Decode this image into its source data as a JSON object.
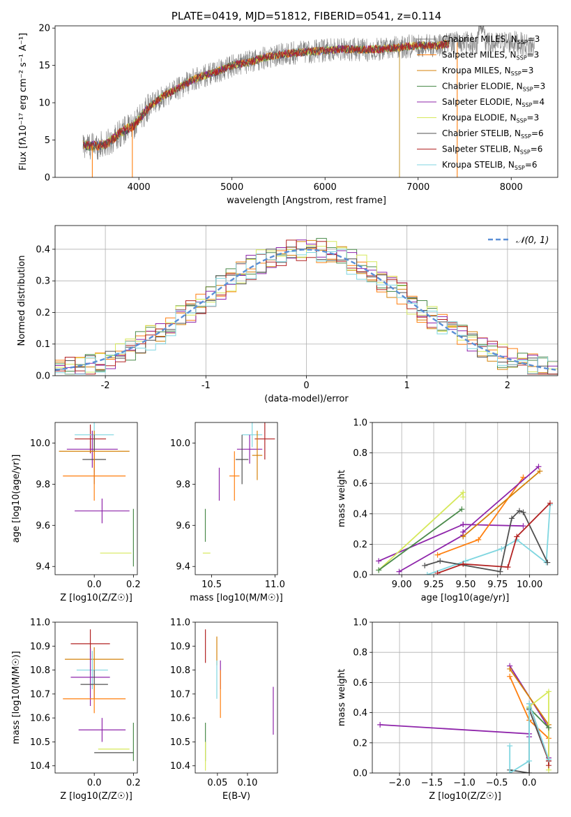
{
  "colors": [
    "#808080",
    "#ff7f0e",
    "#d4820a",
    "#4a8a4a",
    "#8e24aa",
    "#d6e85a",
    "#505050",
    "#b22222",
    "#7fd6e0"
  ],
  "chart_data": [
    {
      "id": "spectrum",
      "type": "line",
      "title": "PLATE=0419, MJD=51812, FIBERID=0541, z=0.114",
      "xlabel": "wavelength [Angstrom, rest frame]",
      "ylabel": "Flux [fλ10⁻¹⁷ erg cm⁻² s⁻¹ A⁻¹]",
      "xlim": [
        3100,
        8500
      ],
      "ylim": [
        0,
        20.3
      ],
      "xticks": [
        4000,
        5000,
        6000,
        7000,
        8000
      ],
      "yticks": [
        0,
        5,
        10,
        15,
        20
      ],
      "legend_position": "right",
      "series_names": [
        "Chabrier MILES, N_SSP=3",
        "Salpeter MILES, N_SSP=3",
        "Kroupa MILES, N_SSP=3",
        "Chabrier ELODIE, N_SSP=3",
        "Salpeter ELODIE, N_SSP=4",
        "Kroupa ELODIE, N_SSP=3",
        "Chabrier STELIB, N_SSP=6",
        "Salpeter STELIB, N_SSP=6",
        "Kroupa STELIB, N_SSP=6"
      ],
      "continuum": {
        "x": [
          3400,
          3500,
          3650,
          3800,
          3950,
          4100,
          4250,
          4400,
          4600,
          4800,
          5000,
          5200,
          5400,
          5600,
          5800,
          6000,
          6200,
          6400,
          6600,
          6800,
          7000,
          7200,
          7400,
          7600,
          7800,
          8000,
          8200
        ],
        "y": [
          4.3,
          4.2,
          4.4,
          6.0,
          7.0,
          9.3,
          10.8,
          11.8,
          13.2,
          14.0,
          15.0,
          15.5,
          16.2,
          16.6,
          16.8,
          17.0,
          17.2,
          17.1,
          17.2,
          17.4,
          17.7,
          17.6,
          18.1,
          18.0,
          17.8,
          18.2,
          17.6
        ]
      },
      "drop_lines": [
        3500,
        3930,
        6800,
        7420
      ]
    },
    {
      "id": "residuals",
      "type": "histogram",
      "xlabel": "(data-model)/error",
      "ylabel": "Normed distribution",
      "xlim": [
        -2.5,
        2.5
      ],
      "ylim": [
        0,
        0.475
      ],
      "xticks": [
        -2,
        -1,
        0,
        1,
        2
      ],
      "yticks": [
        0.0,
        0.1,
        0.2,
        0.3,
        0.4
      ],
      "grid": true,
      "reference_curve": "normal(0,1)",
      "legend": [
        "N(0,1)"
      ],
      "legend_position": "top-right"
    },
    {
      "id": "age-vs-z",
      "type": "errorbar",
      "xlabel": "Z [log10(Z/Z☉)]",
      "ylabel": "age  [log10(age/yr)]",
      "xlim": [
        -0.2,
        0.22
      ],
      "ylim": [
        9.36,
        10.1
      ],
      "xticks": [
        0.0,
        0.2
      ],
      "xticklabels": [
        "0.0",
        "0.2"
      ],
      "yticks": [
        9.4,
        9.6,
        9.8,
        10.0
      ],
      "points": [
        {
          "x": -0.02,
          "xe": 0.08,
          "y": 10.02,
          "ye": 0.07,
          "c": 7
        },
        {
          "x": 0.0,
          "xe": 0.1,
          "y": 10.04,
          "ye": 0.06,
          "c": 8
        },
        {
          "x": -0.01,
          "xe": 0.13,
          "y": 9.97,
          "ye": 0.09,
          "c": 4
        },
        {
          "x": 0.0,
          "xe": 0.18,
          "y": 9.96,
          "ye": 0.1,
          "c": 2
        },
        {
          "x": 0.0,
          "xe": 0.06,
          "y": 9.92,
          "ye": 0.12,
          "c": 6
        },
        {
          "x": 0.0,
          "xe": 0.16,
          "y": 9.84,
          "ye": 0.12,
          "c": 1
        },
        {
          "x": 0.04,
          "xe": 0.14,
          "y": 9.67,
          "ye": 0.06,
          "c": 4
        },
        {
          "x": 0.11,
          "xe": 0.08,
          "y": 9.465,
          "ye": 0.0,
          "c": 5
        },
        {
          "x": 0.2,
          "xe": 0.0,
          "y": 9.54,
          "ye": 0.14,
          "c": 3
        }
      ]
    },
    {
      "id": "age-vs-mass",
      "type": "errorbar",
      "xlabel": "mass [log10(M/M☉)]",
      "ylabel": "",
      "xlim": [
        10.37,
        11.02
      ],
      "ylim": [
        9.36,
        10.1
      ],
      "xticks": [
        10.5,
        11.0
      ],
      "xticklabels": [
        "10.5",
        "11.0"
      ],
      "yticks": [
        9.4,
        9.6,
        9.8,
        10.0
      ],
      "points": [
        {
          "x": 10.92,
          "xe": 0.08,
          "y": 10.02,
          "ye": 0.1,
          "c": 7
        },
        {
          "x": 10.82,
          "xe": 0.08,
          "y": 10.04,
          "ye": 0.06,
          "c": 8
        },
        {
          "x": 10.8,
          "xe": 0.1,
          "y": 9.97,
          "ye": 0.07,
          "c": 4
        },
        {
          "x": 10.86,
          "xe": 0.04,
          "y": 9.94,
          "ye": 0.12,
          "c": 2
        },
        {
          "x": 10.74,
          "xe": 0.05,
          "y": 9.92,
          "ye": 0.12,
          "c": 6
        },
        {
          "x": 10.68,
          "xe": 0.04,
          "y": 9.84,
          "ye": 0.12,
          "c": 1
        },
        {
          "x": 10.56,
          "xe": 0.0,
          "y": 9.8,
          "ye": 0.08,
          "c": 4
        },
        {
          "x": 10.46,
          "xe": 0.03,
          "y": 9.465,
          "ye": 0.0,
          "c": 5
        },
        {
          "x": 10.45,
          "xe": 0.0,
          "y": 9.6,
          "ye": 0.08,
          "c": 3
        }
      ]
    },
    {
      "id": "massweight-vs-age",
      "type": "line",
      "xlabel": "age  [log10(age/yr)]",
      "ylabel": "mass weight",
      "xlim": [
        8.77,
        10.22
      ],
      "ylim": [
        0,
        1.0
      ],
      "xticks": [
        9.0,
        9.25,
        9.5,
        9.75,
        10.0
      ],
      "xticklabels": [
        "9.00",
        "9.25",
        "9.50",
        "9.75",
        "10.00"
      ],
      "yticks": [
        0.0,
        0.2,
        0.4,
        0.6,
        0.8,
        1.0
      ],
      "grid": true,
      "lines": [
        {
          "c": 4,
          "x": [
            8.82,
            9.48,
            9.48,
            9.95
          ],
          "y": [
            0.09,
            0.33,
            0.33,
            0.32
          ]
        },
        {
          "c": 5,
          "x": [
            8.82,
            9.48,
            9.48
          ],
          "y": [
            0.03,
            0.54,
            0.51
          ]
        },
        {
          "c": 3,
          "x": [
            8.82,
            9.47
          ],
          "y": [
            0.03,
            0.43
          ]
        },
        {
          "c": 4,
          "x": [
            8.98,
            9.48,
            9.48
          ],
          "y": [
            0.02,
            0.26,
            0.28
          ]
        },
        {
          "c": 1,
          "x": [
            9.28,
            9.6,
            9.95
          ],
          "y": [
            0.13,
            0.23,
            0.64
          ]
        },
        {
          "c": 8,
          "x": [
            9.2,
            9.5,
            9.78,
            9.9,
            10.13,
            10.16
          ],
          "y": [
            0.0,
            0.09,
            0.17,
            0.23,
            0.08,
            0.46
          ]
        },
        {
          "c": 6,
          "x": [
            9.18,
            9.3,
            9.77,
            9.86,
            9.92,
            9.95,
            10.14
          ],
          "y": [
            0.06,
            0.09,
            0.02,
            0.37,
            0.42,
            0.41,
            0.08
          ]
        },
        {
          "c": 7,
          "x": [
            9.28,
            9.48,
            9.83,
            9.9,
            10.16
          ],
          "y": [
            0.01,
            0.07,
            0.05,
            0.25,
            0.47
          ]
        },
        {
          "c": 4,
          "x": [
            9.48,
            10.07
          ],
          "y": [
            0.28,
            0.71
          ]
        },
        {
          "c": 2,
          "x": [
            9.48,
            10.08
          ],
          "y": [
            0.25,
            0.68
          ]
        }
      ]
    },
    {
      "id": "mass-vs-z",
      "type": "errorbar",
      "xlabel": "Z [log10(Z/Z☉)]",
      "ylabel": "mass [log10(M/M☉)]",
      "xlim": [
        -0.2,
        0.22
      ],
      "ylim": [
        10.37,
        11.0
      ],
      "xticks": [
        0.0,
        0.2
      ],
      "xticklabels": [
        "0.0",
        "0.2"
      ],
      "yticks": [
        10.4,
        10.5,
        10.6,
        10.7,
        10.8,
        10.9,
        11.0
      ],
      "points": [
        {
          "x": -0.02,
          "xe": 0.1,
          "y": 10.91,
          "ye": 0.06,
          "c": 7
        },
        {
          "x": 0.0,
          "xe": 0.15,
          "y": 10.845,
          "ye": 0.05,
          "c": 2
        },
        {
          "x": -0.01,
          "xe": 0.08,
          "y": 10.8,
          "ye": 0.08,
          "c": 8
        },
        {
          "x": -0.02,
          "xe": 0.1,
          "y": 10.77,
          "ye": 0.12,
          "c": 4
        },
        {
          "x": 0.0,
          "xe": 0.07,
          "y": 10.74,
          "ye": 0.06,
          "c": 6
        },
        {
          "x": 0.0,
          "xe": 0.16,
          "y": 10.68,
          "ye": 0.06,
          "c": 1
        },
        {
          "x": 0.04,
          "xe": 0.12,
          "y": 10.55,
          "ye": 0.05,
          "c": 4
        },
        {
          "x": 0.1,
          "xe": 0.08,
          "y": 10.47,
          "ye": 0.0,
          "c": 5
        },
        {
          "x": 0.1,
          "xe": 0.1,
          "y": 10.455,
          "ye": 0.0,
          "c": 6
        },
        {
          "x": 0.2,
          "xe": 0.0,
          "y": 10.5,
          "ye": 0.08,
          "c": 3
        }
      ]
    },
    {
      "id": "mass-vs-ebv",
      "type": "errorbar",
      "xlabel": "E(B-V)",
      "ylabel": "",
      "xlim": [
        0.013,
        0.15
      ],
      "ylim": [
        10.37,
        11.0
      ],
      "xticks": [
        0.05,
        0.1
      ],
      "xticklabels": [
        "0.05",
        "0.10"
      ],
      "yticks": [
        10.4,
        10.5,
        10.6,
        10.7,
        10.8,
        10.9,
        11.0
      ],
      "points": [
        {
          "x": 0.03,
          "xe": 0,
          "y": 10.9,
          "ye": 0.07,
          "c": 7
        },
        {
          "x": 0.049,
          "xe": 0,
          "y": 10.88,
          "ye": 0.06,
          "c": 2
        },
        {
          "x": 0.049,
          "xe": 0,
          "y": 10.76,
          "ye": 0.08,
          "c": 8
        },
        {
          "x": 0.055,
          "xe": 0,
          "y": 10.78,
          "ye": 0.06,
          "c": 4
        },
        {
          "x": 0.055,
          "xe": 0,
          "y": 10.7,
          "ye": 0.1,
          "c": 1
        },
        {
          "x": 0.143,
          "xe": 0,
          "y": 10.63,
          "ye": 0.1,
          "c": 4
        },
        {
          "x": 0.03,
          "xe": 0,
          "y": 10.5,
          "ye": 0.08,
          "c": 3
        },
        {
          "x": 0.03,
          "xe": 0,
          "y": 10.44,
          "ye": 0.06,
          "c": 5
        }
      ]
    },
    {
      "id": "massweight-vs-z",
      "type": "line",
      "xlabel": "Z [log10(Z/Z☉)]",
      "ylabel": "mass weight",
      "xlim": [
        -2.42,
        0.44
      ],
      "ylim": [
        0,
        1.0
      ],
      "xticks": [
        -2.0,
        -1.5,
        -1.0,
        -0.5,
        0.0
      ],
      "xticklabels": [
        "−2.0",
        "−1.5",
        "−1.0",
        "−0.5",
        "0.0"
      ],
      "yticks": [
        0.0,
        0.2,
        0.4,
        0.6,
        0.8,
        1.0
      ],
      "grid": true,
      "lines": [
        {
          "c": 4,
          "x": [
            -2.3,
            0.0,
            0.0
          ],
          "y": [
            0.32,
            0.26,
            0.24
          ]
        },
        {
          "c": 4,
          "x": [
            -0.3,
            0.3,
            0.3
          ],
          "y": [
            0.71,
            0.3,
            0.1
          ]
        },
        {
          "c": 2,
          "x": [
            -0.3,
            0.3
          ],
          "y": [
            0.69,
            0.32
          ]
        },
        {
          "c": 1,
          "x": [
            -0.3,
            0.0,
            0.3
          ],
          "y": [
            0.64,
            0.35,
            0.23
          ]
        },
        {
          "c": 5,
          "x": [
            0.0,
            0.3,
            0.3
          ],
          "y": [
            0.44,
            0.54,
            0.02
          ]
        },
        {
          "c": 3,
          "x": [
            0.0,
            0.3
          ],
          "y": [
            0.43,
            0.3
          ]
        },
        {
          "c": 6,
          "x": [
            -0.3,
            0.0,
            0.0,
            0.3
          ],
          "y": [
            0.02,
            0.0,
            0.42,
            0.08
          ]
        },
        {
          "c": 7,
          "x": [
            0.0,
            0.3,
            0.3
          ],
          "y": [
            0.46,
            0.08,
            0.05
          ]
        },
        {
          "c": 8,
          "x": [
            -0.3,
            -0.3,
            0.0,
            0.0,
            0.3
          ],
          "y": [
            0.18,
            0.0,
            0.08,
            0.46,
            0.09
          ]
        }
      ]
    }
  ]
}
